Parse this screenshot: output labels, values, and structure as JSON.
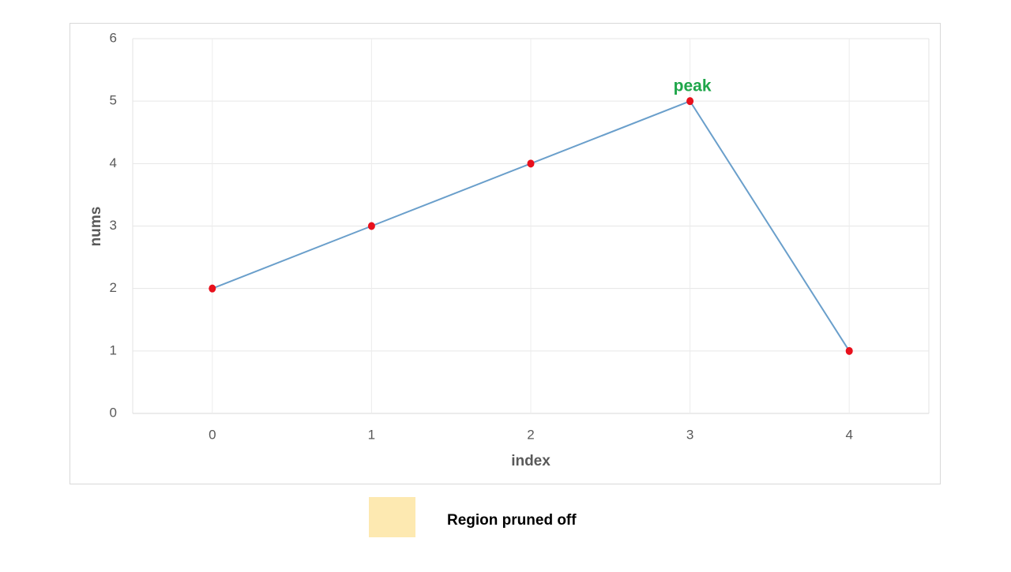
{
  "chart_data": {
    "type": "line",
    "x": [
      0,
      1,
      2,
      3,
      4
    ],
    "series": [
      {
        "name": "nums",
        "color": "#6a9fcb",
        "marker_color": "#e8101c",
        "values": [
          2,
          3,
          4,
          5,
          1
        ]
      }
    ],
    "xlabel": "index",
    "ylabel": "nums",
    "xlim": [
      -0.5,
      4.5
    ],
    "xticks": [
      0,
      1,
      2,
      3,
      4
    ],
    "ylim": [
      0,
      6
    ],
    "yticks": [
      0,
      1,
      2,
      3,
      4,
      5,
      6
    ],
    "grid": true,
    "annotations": [
      {
        "text": "peak",
        "x": 3,
        "y": 5,
        "color": "#1fa64a"
      }
    ],
    "legend_items": [
      {
        "name": "Region pruned off",
        "color": "#fde9b1"
      }
    ]
  }
}
